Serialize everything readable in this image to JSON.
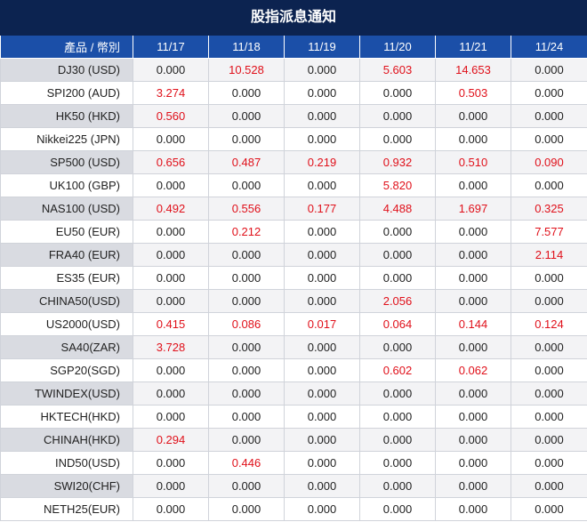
{
  "title": "股指派息通知",
  "table": {
    "header": [
      "產品 / 幣別",
      "11/17",
      "11/18",
      "11/19",
      "11/20",
      "11/21",
      "11/24"
    ],
    "rows": [
      [
        "DJ30 (USD)",
        "0.000",
        "10.528",
        "0.000",
        "5.603",
        "14.653",
        "0.000"
      ],
      [
        "SPI200 (AUD)",
        "3.274",
        "0.000",
        "0.000",
        "0.000",
        "0.503",
        "0.000"
      ],
      [
        "HK50 (HKD)",
        "0.560",
        "0.000",
        "0.000",
        "0.000",
        "0.000",
        "0.000"
      ],
      [
        "Nikkei225 (JPN)",
        "0.000",
        "0.000",
        "0.000",
        "0.000",
        "0.000",
        "0.000"
      ],
      [
        "SP500 (USD)",
        "0.656",
        "0.487",
        "0.219",
        "0.932",
        "0.510",
        "0.090"
      ],
      [
        "UK100 (GBP)",
        "0.000",
        "0.000",
        "0.000",
        "5.820",
        "0.000",
        "0.000"
      ],
      [
        "NAS100 (USD)",
        "0.492",
        "0.556",
        "0.177",
        "4.488",
        "1.697",
        "0.325"
      ],
      [
        "EU50 (EUR)",
        "0.000",
        "0.212",
        "0.000",
        "0.000",
        "0.000",
        "7.577"
      ],
      [
        "FRA40 (EUR)",
        "0.000",
        "0.000",
        "0.000",
        "0.000",
        "0.000",
        "2.114"
      ],
      [
        "ES35 (EUR)",
        "0.000",
        "0.000",
        "0.000",
        "0.000",
        "0.000",
        "0.000"
      ],
      [
        "CHINA50(USD)",
        "0.000",
        "0.000",
        "0.000",
        "2.056",
        "0.000",
        "0.000"
      ],
      [
        "US2000(USD)",
        "0.415",
        "0.086",
        "0.017",
        "0.064",
        "0.144",
        "0.124"
      ],
      [
        "SA40(ZAR)",
        "3.728",
        "0.000",
        "0.000",
        "0.000",
        "0.000",
        "0.000"
      ],
      [
        "SGP20(SGD)",
        "0.000",
        "0.000",
        "0.000",
        "0.602",
        "0.062",
        "0.000"
      ],
      [
        "TWINDEX(USD)",
        "0.000",
        "0.000",
        "0.000",
        "0.000",
        "0.000",
        "0.000"
      ],
      [
        "HKTECH(HKD)",
        "0.000",
        "0.000",
        "0.000",
        "0.000",
        "0.000",
        "0.000"
      ],
      [
        "CHINAH(HKD)",
        "0.294",
        "0.000",
        "0.000",
        "0.000",
        "0.000",
        "0.000"
      ],
      [
        "IND50(USD)",
        "0.000",
        "0.446",
        "0.000",
        "0.000",
        "0.000",
        "0.000"
      ],
      [
        "SWI20(CHF)",
        "0.000",
        "0.000",
        "0.000",
        "0.000",
        "0.000",
        "0.000"
      ],
      [
        "NETH25(EUR)",
        "0.000",
        "0.000",
        "0.000",
        "0.000",
        "0.000",
        "0.000"
      ]
    ]
  }
}
